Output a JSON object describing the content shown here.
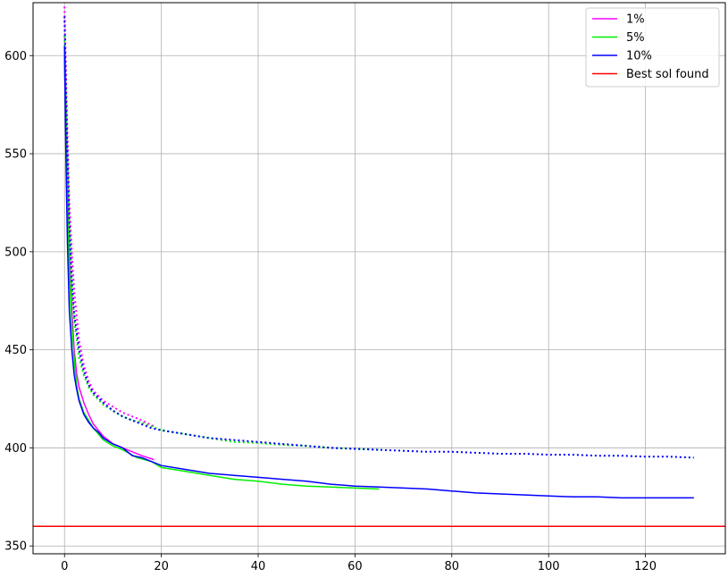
{
  "chart_data": {
    "type": "line",
    "title": "",
    "xlabel": "",
    "ylabel": "",
    "xlim": [
      -6.5,
      136.5
    ],
    "ylim": [
      346,
      627
    ],
    "grid": true,
    "legend_position": "top-right",
    "x_ticks": [
      0,
      20,
      40,
      60,
      80,
      100,
      120
    ],
    "y_ticks": [
      350,
      400,
      450,
      500,
      550,
      600
    ],
    "series": [
      {
        "name": "1%",
        "color": "#ff00ff",
        "solid": [
          [
            0,
            598
          ],
          [
            0.3,
            560
          ],
          [
            0.6,
            530
          ],
          [
            1,
            500
          ],
          [
            1.5,
            470
          ],
          [
            2,
            450
          ],
          [
            2.5,
            438
          ],
          [
            3,
            431
          ],
          [
            4,
            423
          ],
          [
            5,
            417
          ],
          [
            6,
            412
          ],
          [
            7,
            409
          ],
          [
            8,
            406
          ],
          [
            9,
            404
          ],
          [
            10,
            402
          ],
          [
            12,
            400
          ],
          [
            14,
            398
          ],
          [
            16,
            396
          ],
          [
            18.5,
            394
          ]
        ],
        "dotted": [
          [
            0,
            625
          ],
          [
            0.3,
            590
          ],
          [
            0.6,
            560
          ],
          [
            1,
            525
          ],
          [
            1.5,
            500
          ],
          [
            2,
            480
          ],
          [
            3,
            455
          ],
          [
            4,
            442
          ],
          [
            5,
            434
          ],
          [
            6,
            429
          ],
          [
            8,
            424
          ],
          [
            10,
            421
          ],
          [
            12,
            418
          ],
          [
            14,
            416
          ],
          [
            16,
            414
          ],
          [
            18.5,
            411
          ]
        ]
      },
      {
        "name": "5%",
        "color": "#00ee00",
        "solid": [
          [
            0,
            600
          ],
          [
            0.3,
            555
          ],
          [
            0.6,
            520
          ],
          [
            1,
            490
          ],
          [
            1.5,
            462
          ],
          [
            2,
            445
          ],
          [
            2.5,
            432
          ],
          [
            3,
            425
          ],
          [
            4,
            418
          ],
          [
            5,
            414
          ],
          [
            6,
            410
          ],
          [
            7,
            407
          ],
          [
            8,
            404
          ],
          [
            10,
            401
          ],
          [
            12,
            399
          ],
          [
            15,
            395
          ],
          [
            18,
            393
          ],
          [
            20,
            390
          ],
          [
            25,
            388
          ],
          [
            30,
            386
          ],
          [
            35,
            384
          ],
          [
            40,
            383
          ],
          [
            45,
            381.5
          ],
          [
            50,
            380.5
          ],
          [
            55,
            380
          ],
          [
            60,
            379.5
          ],
          [
            65,
            379
          ]
        ],
        "dotted": [
          [
            0,
            610
          ],
          [
            0.3,
            575
          ],
          [
            0.6,
            545
          ],
          [
            1,
            510
          ],
          [
            1.5,
            482
          ],
          [
            2,
            465
          ],
          [
            3,
            446
          ],
          [
            4,
            437
          ],
          [
            5,
            431
          ],
          [
            6,
            427
          ],
          [
            8,
            422
          ],
          [
            10,
            419
          ],
          [
            12,
            416
          ],
          [
            14,
            414
          ],
          [
            16,
            413
          ],
          [
            18,
            411
          ],
          [
            20,
            409
          ],
          [
            25,
            407
          ],
          [
            30,
            405
          ],
          [
            35,
            403
          ],
          [
            40,
            402.5
          ],
          [
            45,
            401.5
          ],
          [
            50,
            401
          ],
          [
            55,
            400
          ],
          [
            60,
            399.5
          ],
          [
            65,
            399
          ]
        ]
      },
      {
        "name": "10%",
        "color": "#0000ff",
        "solid": [
          [
            0,
            605
          ],
          [
            0.3,
            545
          ],
          [
            0.6,
            505
          ],
          [
            1,
            470
          ],
          [
            1.5,
            450
          ],
          [
            2,
            437
          ],
          [
            2.5,
            430
          ],
          [
            3,
            424
          ],
          [
            4,
            417
          ],
          [
            5,
            413
          ],
          [
            6,
            410
          ],
          [
            7,
            408
          ],
          [
            8,
            405
          ],
          [
            10,
            402
          ],
          [
            12,
            400
          ],
          [
            14,
            396
          ],
          [
            16,
            395
          ],
          [
            18,
            393
          ],
          [
            20,
            391
          ],
          [
            25,
            389
          ],
          [
            30,
            387
          ],
          [
            35,
            386
          ],
          [
            40,
            385
          ],
          [
            45,
            384
          ],
          [
            50,
            383
          ],
          [
            55,
            381.5
          ],
          [
            60,
            380.5
          ],
          [
            65,
            380
          ],
          [
            70,
            379.5
          ],
          [
            75,
            379
          ],
          [
            80,
            378
          ],
          [
            85,
            377
          ],
          [
            90,
            376.5
          ],
          [
            95,
            376
          ],
          [
            100,
            375.5
          ],
          [
            105,
            375
          ],
          [
            110,
            375
          ],
          [
            115,
            374.5
          ],
          [
            120,
            374.5
          ],
          [
            125,
            374.5
          ],
          [
            130,
            374.5
          ]
        ],
        "dotted": [
          [
            0,
            620
          ],
          [
            0.3,
            580
          ],
          [
            0.6,
            550
          ],
          [
            1,
            515
          ],
          [
            1.5,
            486
          ],
          [
            2,
            468
          ],
          [
            3,
            450
          ],
          [
            4,
            439
          ],
          [
            5,
            432
          ],
          [
            6,
            428
          ],
          [
            8,
            423
          ],
          [
            10,
            419
          ],
          [
            12,
            416
          ],
          [
            14,
            414
          ],
          [
            16,
            412
          ],
          [
            18,
            410
          ],
          [
            20,
            409
          ],
          [
            25,
            407
          ],
          [
            30,
            405
          ],
          [
            35,
            404
          ],
          [
            40,
            403
          ],
          [
            45,
            402
          ],
          [
            50,
            401
          ],
          [
            55,
            400
          ],
          [
            60,
            399.5
          ],
          [
            65,
            399
          ],
          [
            70,
            398.5
          ],
          [
            75,
            398
          ],
          [
            80,
            398
          ],
          [
            85,
            397.5
          ],
          [
            90,
            397
          ],
          [
            95,
            397
          ],
          [
            100,
            396.5
          ],
          [
            105,
            396.5
          ],
          [
            110,
            396
          ],
          [
            115,
            396
          ],
          [
            120,
            395.5
          ],
          [
            125,
            395.5
          ],
          [
            130,
            395
          ]
        ]
      }
    ],
    "reference_lines": [
      {
        "name": "Best sol found",
        "color": "#ff0000",
        "y": 360
      }
    ]
  }
}
